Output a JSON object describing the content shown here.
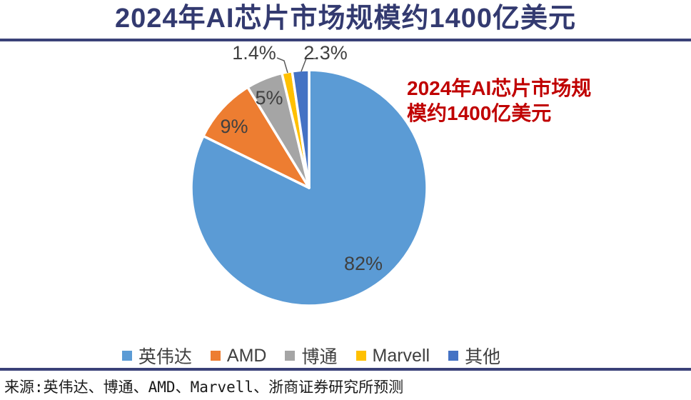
{
  "header": {
    "title": "2024年AI芯片市场规模约1400亿美元"
  },
  "annotation": {
    "line1": "2024年AI芯片市场规",
    "line2": "模约1400亿美元",
    "color": "#C00000"
  },
  "source": {
    "text": "来源:英伟达、博通、AMD、Marvell、浙商证券研究所预测"
  },
  "colors": {
    "title_navy": "#333A70",
    "divider_navy": "#3A4178",
    "data_label_gray": "#404040",
    "leader_line_gray": "#595959"
  },
  "chart_data": {
    "type": "pie",
    "title": "2024年AI芯片市场规模约1400亿美元",
    "start_angle_deg": 0,
    "direction": "clockwise",
    "legend_position": "bottom",
    "grid": false,
    "center": [
      205,
      208
    ],
    "radius": 165,
    "slices": [
      {
        "id": "nvidia",
        "label": "英伟达",
        "value": 82,
        "display": "82%",
        "color": "#5B9BD5",
        "label_pos": [
          281,
          314
        ]
      },
      {
        "id": "amd",
        "label": "AMD",
        "value": 9,
        "display": "9%",
        "color": "#ED7D31",
        "label_pos": [
          100,
          122
        ]
      },
      {
        "id": "broadcom",
        "label": "博通",
        "value": 5,
        "display": "5%",
        "color": "#A5A5A5",
        "label_pos": [
          149,
          82
        ]
      },
      {
        "id": "marvell",
        "label": "Marvell",
        "value": 1.4,
        "display": "1.4%",
        "color": "#FFC000",
        "label_pos": [
          128,
          19
        ],
        "leader": [
          [
            160,
            26
          ],
          [
            170,
            30
          ],
          [
            175,
            47
          ]
        ]
      },
      {
        "id": "others",
        "label": "其他",
        "value": 2.3,
        "display": "2.3%",
        "color": "#4472C4",
        "label_pos": [
          228,
          19
        ],
        "leader": [
          [
            216,
            27
          ],
          [
            201,
            27
          ],
          [
            194,
            45
          ]
        ]
      }
    ]
  }
}
